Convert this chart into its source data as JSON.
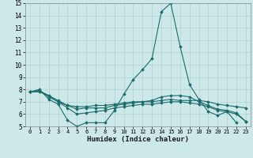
{
  "xlabel": "Humidex (Indice chaleur)",
  "bg_color": "#cce8e8",
  "grid_color": "#aacccc",
  "line_color": "#1a6b6b",
  "xlim": [
    -0.5,
    23.5
  ],
  "ylim": [
    5,
    15
  ],
  "yticks": [
    5,
    6,
    7,
    8,
    9,
    10,
    11,
    12,
    13,
    14,
    15
  ],
  "xticks": [
    0,
    1,
    2,
    3,
    4,
    5,
    6,
    7,
    8,
    9,
    10,
    11,
    12,
    13,
    14,
    15,
    16,
    17,
    18,
    19,
    20,
    21,
    22,
    23
  ],
  "series": [
    {
      "x": [
        0,
        1,
        2,
        3,
        4,
        5,
        6,
        7,
        8,
        9,
        10,
        11,
        12,
        13,
        14,
        15,
        16,
        17,
        18,
        19,
        20,
        21,
        22
      ],
      "y": [
        7.8,
        8.0,
        7.2,
        6.8,
        5.5,
        5.0,
        5.3,
        5.3,
        5.3,
        6.3,
        7.6,
        8.8,
        9.6,
        10.5,
        14.3,
        15.0,
        11.5,
        8.4,
        7.2,
        6.2,
        5.9,
        6.2,
        5.3
      ]
    },
    {
      "x": [
        0,
        1,
        2,
        3,
        4,
        5,
        6,
        7,
        8,
        9,
        10,
        11,
        12,
        13,
        14,
        15,
        16,
        17,
        18,
        19,
        20,
        21,
        22,
        23
      ],
      "y": [
        7.8,
        7.9,
        7.4,
        7.0,
        6.7,
        6.6,
        6.6,
        6.7,
        6.7,
        6.8,
        6.9,
        7.0,
        7.0,
        7.0,
        7.1,
        7.2,
        7.1,
        7.1,
        7.1,
        7.0,
        6.8,
        6.7,
        6.6,
        6.5
      ]
    },
    {
      "x": [
        0,
        1,
        2,
        3,
        4,
        5,
        6,
        7,
        8,
        9,
        10,
        11,
        12,
        13,
        14,
        15,
        16,
        17,
        18,
        19,
        20,
        21,
        22,
        23
      ],
      "y": [
        7.8,
        7.8,
        7.5,
        7.0,
        6.5,
        6.0,
        6.1,
        6.2,
        6.3,
        6.5,
        6.6,
        6.7,
        6.8,
        6.8,
        6.9,
        7.0,
        7.0,
        6.9,
        6.8,
        6.6,
        6.3,
        6.2,
        6.0,
        5.4
      ]
    },
    {
      "x": [
        0,
        1,
        2,
        3,
        4,
        5,
        6,
        7,
        8,
        9,
        10,
        11,
        12,
        13,
        14,
        15,
        16,
        17,
        18,
        19,
        20,
        21,
        22,
        23
      ],
      "y": [
        7.8,
        7.9,
        7.5,
        7.1,
        6.7,
        6.4,
        6.5,
        6.5,
        6.5,
        6.7,
        6.8,
        6.9,
        7.0,
        7.1,
        7.4,
        7.5,
        7.5,
        7.4,
        7.0,
        6.7,
        6.4,
        6.3,
        6.1,
        5.4
      ]
    }
  ]
}
